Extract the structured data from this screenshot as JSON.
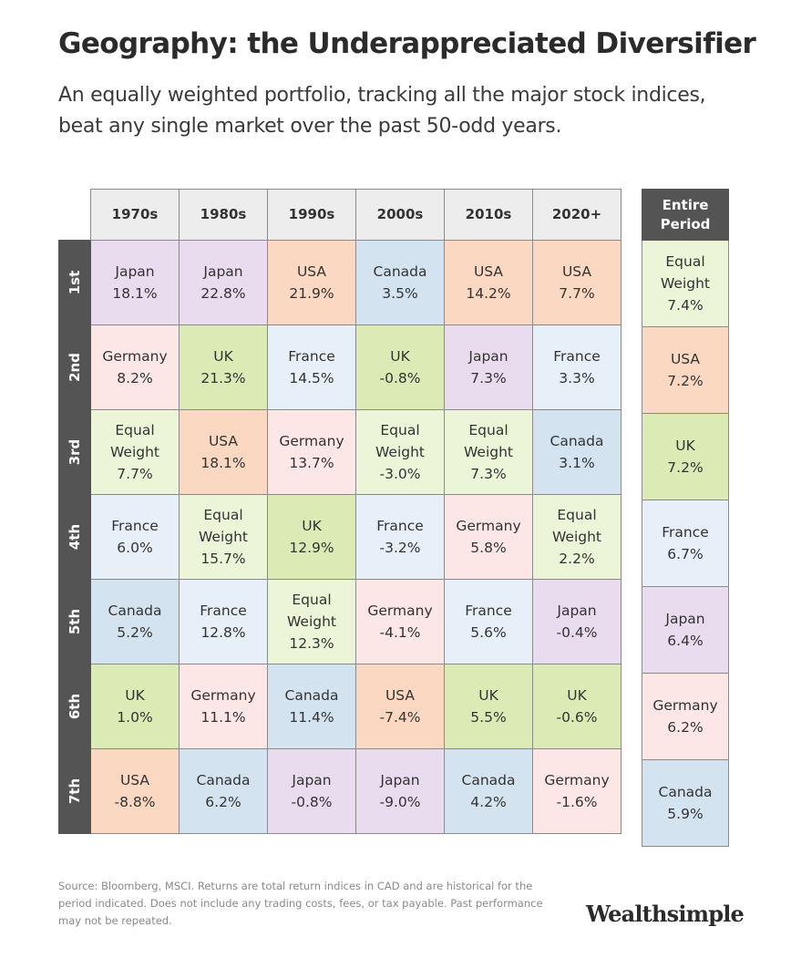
{
  "title": "Geography: the Underappreciated Diversifier",
  "subtitle": "An equally weighted portfolio, tracking all the major stock indices, beat any single market over the past 50-odd years.",
  "chart_data": {
    "type": "table",
    "columns": [
      "1970s",
      "1980s",
      "1990s",
      "2000s",
      "2010s",
      "2020+"
    ],
    "ranks": [
      "1st",
      "2nd",
      "3rd",
      "4th",
      "5th",
      "6th",
      "7th"
    ],
    "rows": [
      [
        {
          "market": "Japan",
          "return": "18.1%"
        },
        {
          "market": "Japan",
          "return": "22.8%"
        },
        {
          "market": "USA",
          "return": "21.9%"
        },
        {
          "market": "Canada",
          "return": "3.5%"
        },
        {
          "market": "USA",
          "return": "14.2%"
        },
        {
          "market": "USA",
          "return": "7.7%"
        }
      ],
      [
        {
          "market": "Germany",
          "return": "8.2%"
        },
        {
          "market": "UK",
          "return": "21.3%"
        },
        {
          "market": "France",
          "return": "14.5%"
        },
        {
          "market": "UK",
          "return": "-0.8%"
        },
        {
          "market": "Japan",
          "return": "7.3%"
        },
        {
          "market": "France",
          "return": "3.3%"
        }
      ],
      [
        {
          "market": "Equal Weight",
          "return": "7.7%"
        },
        {
          "market": "USA",
          "return": "18.1%"
        },
        {
          "market": "Germany",
          "return": "13.7%"
        },
        {
          "market": "Equal Weight",
          "return": "-3.0%"
        },
        {
          "market": "Equal Weight",
          "return": "7.3%"
        },
        {
          "market": "Canada",
          "return": "3.1%"
        }
      ],
      [
        {
          "market": "France",
          "return": "6.0%"
        },
        {
          "market": "Equal Weight",
          "return": "15.7%"
        },
        {
          "market": "UK",
          "return": "12.9%"
        },
        {
          "market": "France",
          "return": "-3.2%"
        },
        {
          "market": "Germany",
          "return": "5.8%"
        },
        {
          "market": "Equal Weight",
          "return": "2.2%"
        }
      ],
      [
        {
          "market": "Canada",
          "return": "5.2%"
        },
        {
          "market": "France",
          "return": "12.8%"
        },
        {
          "market": "Equal Weight",
          "return": "12.3%"
        },
        {
          "market": "Germany",
          "return": "-4.1%"
        },
        {
          "market": "France",
          "return": "5.6%"
        },
        {
          "market": "Japan",
          "return": "-0.4%"
        }
      ],
      [
        {
          "market": "UK",
          "return": "1.0%"
        },
        {
          "market": "Germany",
          "return": "11.1%"
        },
        {
          "market": "Canada",
          "return": "11.4%"
        },
        {
          "market": "USA",
          "return": "-7.4%"
        },
        {
          "market": "UK",
          "return": "5.5%"
        },
        {
          "market": "UK",
          "return": "-0.6%"
        }
      ],
      [
        {
          "market": "USA",
          "return": "-8.8%"
        },
        {
          "market": "Canada",
          "return": "6.2%"
        },
        {
          "market": "Japan",
          "return": "-0.8%"
        },
        {
          "market": "Japan",
          "return": "-9.0%"
        },
        {
          "market": "Canada",
          "return": "4.2%"
        },
        {
          "market": "Germany",
          "return": "-1.6%"
        }
      ]
    ],
    "entire_period": {
      "label": "Entire Period",
      "ranking": [
        {
          "market": "Equal Weight",
          "return": "7.4%"
        },
        {
          "market": "USA",
          "return": "7.2%"
        },
        {
          "market": "UK",
          "return": "7.2%"
        },
        {
          "market": "France",
          "return": "6.7%"
        },
        {
          "market": "Japan",
          "return": "6.4%"
        },
        {
          "market": "Germany",
          "return": "6.2%"
        },
        {
          "market": "Canada",
          "return": "5.9%"
        }
      ]
    },
    "market_colors": {
      "Japan": "#e9dcef",
      "USA": "#fbd8c2",
      "Canada": "#d4e3f0",
      "Germany": "#fde6e6",
      "UK": "#dcebb6",
      "France": "#e7eff8",
      "Equal Weight": "#edf5d8"
    }
  },
  "source": "Source: Bloomberg, MSCI. Returns are total return indices in CAD and are historical for the period indicated. Does not include any trading costs, fees, or tax payable. Past performance may not be repeated.",
  "brand": "Wealthsimple"
}
